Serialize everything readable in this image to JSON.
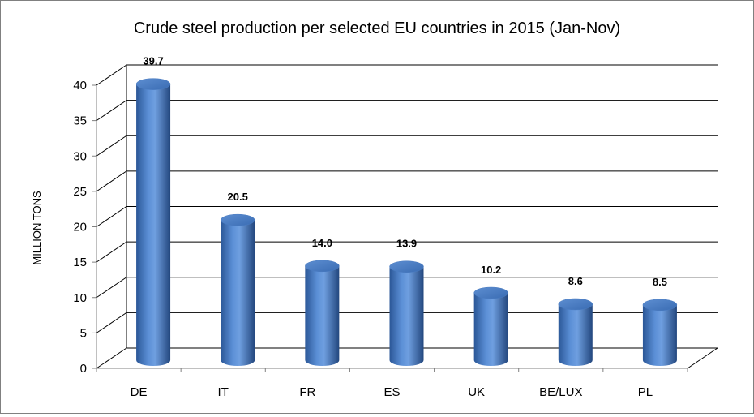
{
  "chart_data": {
    "type": "bar",
    "title": "Crude steel production per selected EU countries in 2015 (Jan-Nov)",
    "xlabel": "",
    "ylabel": "MILLION TONS",
    "categories": [
      "DE",
      "IT",
      "FR",
      "ES",
      "UK",
      "BE/LUX",
      "PL"
    ],
    "values": [
      39.7,
      20.5,
      14.0,
      13.9,
      10.2,
      8.6,
      8.5
    ],
    "data_labels": [
      "39.7",
      "20.5",
      "14.0",
      "13.9",
      "10.2",
      "8.6",
      "8.5"
    ],
    "y_ticks": [
      "0",
      "5",
      "10",
      "15",
      "20",
      "25",
      "30",
      "35",
      "40"
    ],
    "ylim": [
      0,
      40
    ],
    "grid": true,
    "legend": "none",
    "style": "3d-cylinder",
    "bar_color": "#4F81BD",
    "grid_color": "#000000"
  }
}
